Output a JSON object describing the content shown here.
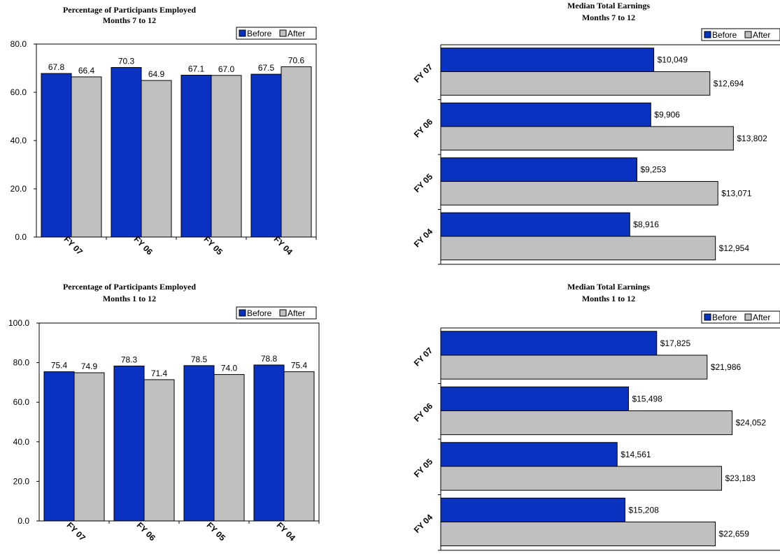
{
  "colors": {
    "before": "#0a32c0",
    "after": "#c0c0c0",
    "outline": "#000000"
  },
  "chart_data": [
    {
      "id": "emp-7-12",
      "type": "bar",
      "orientation": "vertical",
      "title": "Percentage of Participants Employed",
      "subtitle": "Months 7 to 12",
      "categories": [
        "FY 07",
        "FY 06",
        "FY 05",
        "FY 04"
      ],
      "series": [
        {
          "name": "Before",
          "values": [
            67.8,
            70.3,
            67.1,
            67.5
          ],
          "labels": [
            "67.8",
            "70.3",
            "67.1",
            "67.5"
          ]
        },
        {
          "name": "After",
          "values": [
            66.4,
            64.9,
            67.0,
            70.6
          ],
          "labels": [
            "66.4",
            "64.9",
            "67.0",
            "70.6"
          ]
        }
      ],
      "ylim": [
        0,
        80
      ],
      "yticks": [
        0,
        20,
        40,
        60,
        80
      ],
      "ytick_labels": [
        "0.0",
        "20.0",
        "40.0",
        "60.0",
        "80.0"
      ],
      "grid": false,
      "legend": "top-right"
    },
    {
      "id": "earn-7-12",
      "type": "bar",
      "orientation": "horizontal",
      "title": "Median Total Earnings",
      "subtitle": "Months 7 to 12",
      "categories": [
        "FY 07",
        "FY 06",
        "FY 05",
        "FY 04"
      ],
      "series": [
        {
          "name": "Before",
          "values": [
            10049,
            9906,
            9253,
            8916
          ],
          "labels": [
            "$10,049",
            "$9,906",
            "$9,253",
            "$8,916"
          ]
        },
        {
          "name": "After",
          "values": [
            12694,
            13802,
            13071,
            12954
          ],
          "labels": [
            "$12,694",
            "$13,802",
            "$13,071",
            "$12,954"
          ]
        }
      ],
      "xlim": [
        0,
        16000
      ],
      "grid": false,
      "legend": "top-right"
    },
    {
      "id": "emp-1-12",
      "type": "bar",
      "orientation": "vertical",
      "title": "Percentage of Participants Employed",
      "subtitle": "Months 1 to 12",
      "categories": [
        "FY 07",
        "FY 06",
        "FY 05",
        "FY 04"
      ],
      "series": [
        {
          "name": "Before",
          "values": [
            75.4,
            78.3,
            78.5,
            78.8
          ],
          "labels": [
            "75.4",
            "78.3",
            "78.5",
            "78.8"
          ]
        },
        {
          "name": "After",
          "values": [
            74.9,
            71.4,
            74.0,
            75.4
          ],
          "labels": [
            "74.9",
            "71.4",
            "74.0",
            "75.4"
          ]
        }
      ],
      "ylim": [
        0,
        100
      ],
      "yticks": [
        0,
        20,
        40,
        60,
        80,
        100
      ],
      "ytick_labels": [
        "0.0",
        "20.0",
        "40.0",
        "60.0",
        "80.0",
        "100.0"
      ],
      "grid": false,
      "legend": "top-right"
    },
    {
      "id": "earn-1-12",
      "type": "bar",
      "orientation": "horizontal",
      "title": "Median Total Earnings",
      "subtitle": "Months 1 to 12",
      "categories": [
        "FY 07",
        "FY 06",
        "FY 05",
        "FY 04"
      ],
      "series": [
        {
          "name": "Before",
          "values": [
            17825,
            15498,
            14561,
            15208
          ],
          "labels": [
            "$17,825",
            "$15,498",
            "$14,561",
            "$15,208"
          ]
        },
        {
          "name": "After",
          "values": [
            21986,
            24052,
            23183,
            22659
          ],
          "labels": [
            "$21,986",
            "$24,052",
            "$23,183",
            "$22,659"
          ]
        }
      ],
      "xlim": [
        0,
        28000
      ],
      "grid": false,
      "legend": "top-right"
    }
  ]
}
